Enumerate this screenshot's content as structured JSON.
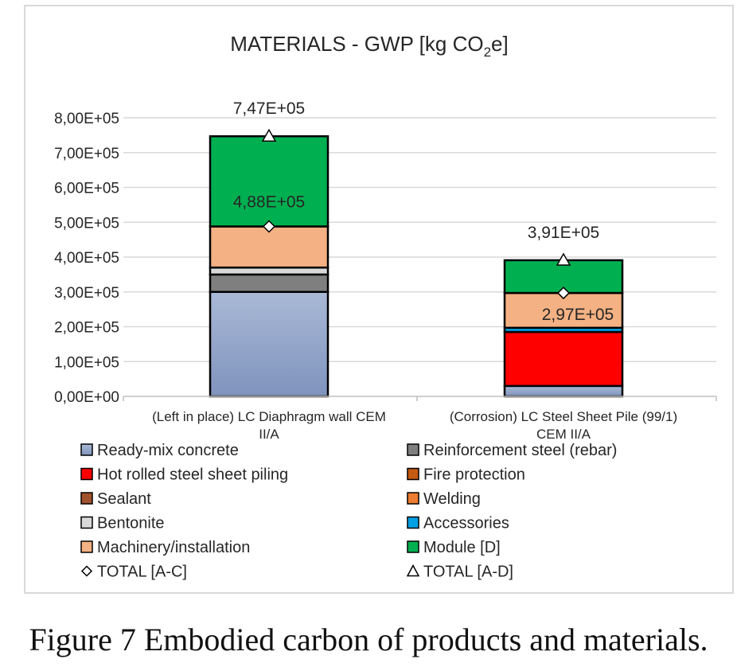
{
  "caption": "Figure 7 Embodied carbon of products and materials.",
  "chart_data": {
    "type": "bar",
    "stacked": true,
    "title_main": "MATERIALS  - GWP [kg CO",
    "title_sub": "2",
    "title_tail": "e]",
    "ylim": [
      0,
      800000
    ],
    "yticks": [
      {
        "value": 0,
        "label": "0,00E+00"
      },
      {
        "value": 100000,
        "label": "1,00E+05"
      },
      {
        "value": 200000,
        "label": "2,00E+05"
      },
      {
        "value": 300000,
        "label": "3,00E+05"
      },
      {
        "value": 400000,
        "label": "4,00E+05"
      },
      {
        "value": 500000,
        "label": "5,00E+05"
      },
      {
        "value": 600000,
        "label": "6,00E+05"
      },
      {
        "value": 700000,
        "label": "7,00E+05"
      },
      {
        "value": 800000,
        "label": "8,00E+05"
      }
    ],
    "grid": true,
    "legend_position": "bottom",
    "categories": [
      {
        "line1": "(Left in place) LC Diaphragm wall CEM",
        "line2": "II/A"
      },
      {
        "line1": "(Corrosion) LC Steel Sheet Pile (99/1)",
        "line2": "CEM II/A"
      }
    ],
    "series": [
      {
        "name": "Ready-mix concrete",
        "color": "#8ea3c8",
        "values": [
          300000,
          30000
        ]
      },
      {
        "name": "Reinforcement steel (rebar)",
        "color": "#7f7f7f",
        "values": [
          50000,
          0
        ]
      },
      {
        "name": "Hot rolled steel sheet piling",
        "color": "#ff0000",
        "values": [
          0,
          155000
        ]
      },
      {
        "name": "Fire protection",
        "color": "#c55a11",
        "values": [
          0,
          0
        ]
      },
      {
        "name": "Sealant",
        "color": "#a0522d",
        "values": [
          0,
          0
        ]
      },
      {
        "name": "Welding",
        "color": "#ed7d31",
        "values": [
          0,
          0
        ]
      },
      {
        "name": "Bentonite",
        "color": "#d9d9d9",
        "values": [
          20000,
          0
        ]
      },
      {
        "name": "Accessories",
        "color": "#00a0e3",
        "values": [
          0,
          12000
        ]
      },
      {
        "name": "Machinery/installation",
        "color": "#f4b183",
        "values": [
          118000,
          100000
        ]
      },
      {
        "name": "Module [D]",
        "color": "#00b050",
        "values": [
          259000,
          94000
        ]
      }
    ],
    "totals": [
      {
        "name": "TOTAL [A-C]",
        "marker": "diamond",
        "values": [
          488000,
          297000
        ],
        "labels": [
          "4,88E+05",
          "2,97E+05"
        ]
      },
      {
        "name": "TOTAL [A-D]",
        "marker": "triangle",
        "values": [
          747000,
          391000
        ],
        "labels": [
          "7,47E+05",
          "3,91E+05"
        ]
      }
    ],
    "legend_order": [
      "Ready-mix concrete",
      "Reinforcement steel (rebar)",
      "Hot rolled steel sheet piling",
      "Fire protection",
      "Sealant",
      "Welding",
      "Bentonite",
      "Accessories",
      "Machinery/installation",
      "Module [D]",
      "TOTAL [A-C]",
      "TOTAL [A-D]"
    ]
  }
}
